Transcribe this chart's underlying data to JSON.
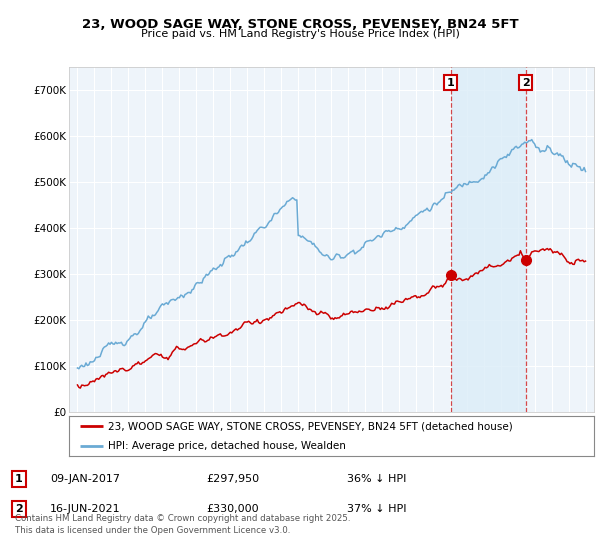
{
  "title": "23, WOOD SAGE WAY, STONE CROSS, PEVENSEY, BN24 5FT",
  "subtitle": "Price paid vs. HM Land Registry's House Price Index (HPI)",
  "legend_line1": "23, WOOD SAGE WAY, STONE CROSS, PEVENSEY, BN24 5FT (detached house)",
  "legend_line2": "HPI: Average price, detached house, Wealden",
  "ann1_date": "09-JAN-2017",
  "ann1_price_str": "£297,950",
  "ann1_hpi_str": "36% ↓ HPI",
  "ann1_year": 2017.04,
  "ann1_price": 297950,
  "ann2_date": "16-JUN-2021",
  "ann2_price_str": "£330,000",
  "ann2_hpi_str": "37% ↓ HPI",
  "ann2_year": 2021.46,
  "ann2_price": 330000,
  "footer": "Contains HM Land Registry data © Crown copyright and database right 2025.\nThis data is licensed under the Open Government Licence v3.0.",
  "hpi_color": "#6AAAD4",
  "price_color": "#CC0000",
  "ann_color": "#CC0000",
  "shading_color": "#DDEEF8",
  "plot_bg": "#EEF4FA",
  "grid_color": "#FFFFFF",
  "ylim_max": 750000,
  "yticks": [
    0,
    100000,
    200000,
    300000,
    400000,
    500000,
    600000,
    700000
  ],
  "ytick_labels": [
    "£0",
    "£100K",
    "£200K",
    "£300K",
    "£400K",
    "£500K",
    "£600K",
    "£700K"
  ]
}
